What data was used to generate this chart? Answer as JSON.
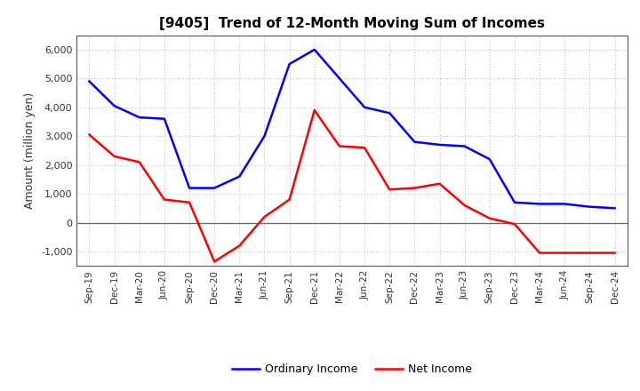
{
  "title": "[9405]  Trend of 12-Month Moving Sum of Incomes",
  "ylabel": "Amount (million yen)",
  "x_labels": [
    "Sep-19",
    "Dec-19",
    "Mar-20",
    "Jun-20",
    "Sep-20",
    "Dec-20",
    "Mar-21",
    "Jun-21",
    "Sep-21",
    "Dec-21",
    "Mar-22",
    "Jun-22",
    "Sep-22",
    "Dec-22",
    "Mar-23",
    "Jun-23",
    "Sep-23",
    "Dec-23",
    "Mar-24",
    "Jun-24",
    "Sep-24",
    "Dec-24"
  ],
  "ordinary_income": [
    4900,
    4050,
    3650,
    3600,
    1200,
    1200,
    1600,
    3000,
    5500,
    6000,
    5000,
    4000,
    3800,
    2800,
    2700,
    2650,
    2200,
    700,
    650,
    650,
    550,
    500
  ],
  "net_income": [
    3050,
    2300,
    2100,
    800,
    700,
    -1350,
    -800,
    200,
    800,
    3900,
    2650,
    2600,
    1150,
    1200,
    1350,
    600,
    150,
    -50,
    -1050,
    -1050,
    -1050,
    -1050
  ],
  "ordinary_color": "#0000ff",
  "net_color": "#ff0000",
  "ylim": [
    -1500,
    6500
  ],
  "yticks": [
    -1000,
    0,
    1000,
    2000,
    3000,
    4000,
    5000,
    6000
  ],
  "background_color": "#ffffff",
  "grid_color": "#999999",
  "zero_line_color": "#666666",
  "title_fontsize": 11,
  "ylabel_fontsize": 9,
  "tick_fontsize": 8,
  "xtick_fontsize": 7.5,
  "legend_fontsize": 9,
  "line_width": 1.8
}
